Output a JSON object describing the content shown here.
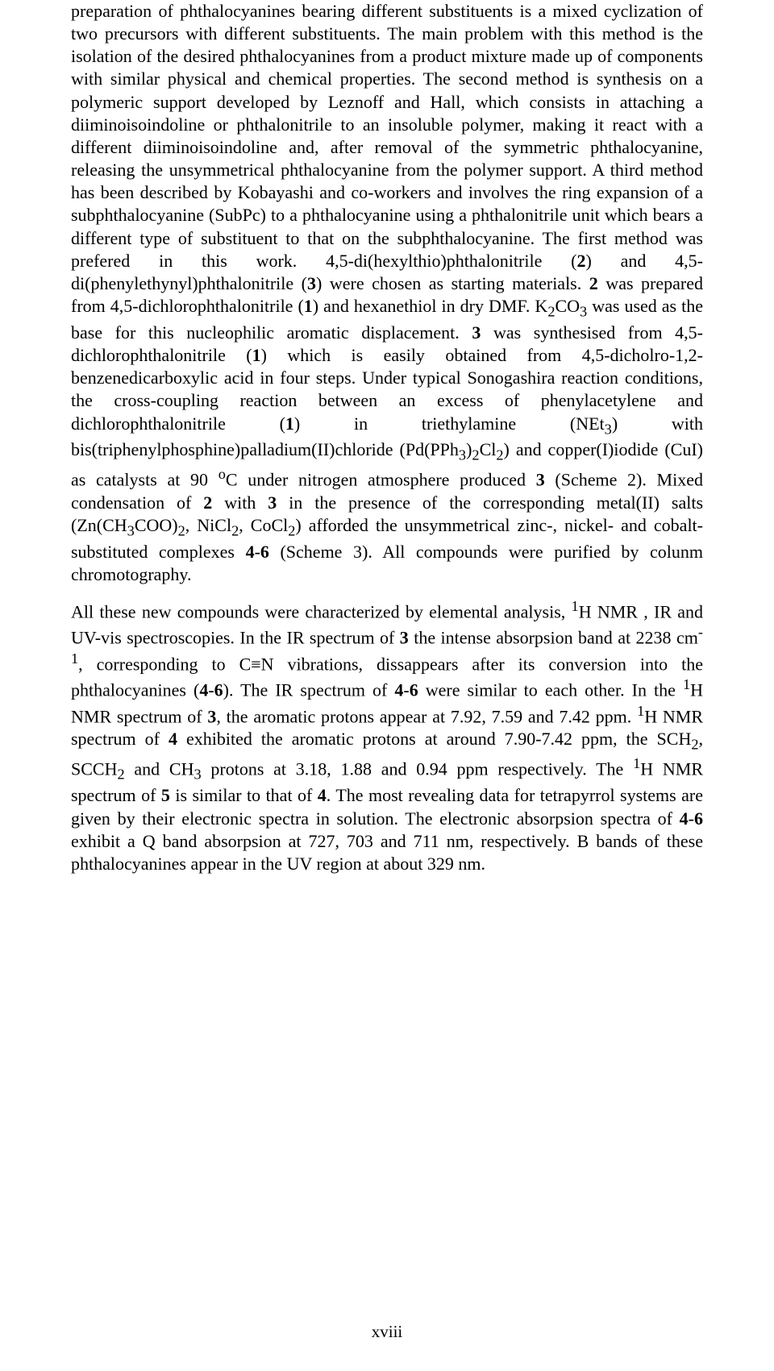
{
  "page": {
    "paragraph1_html": "preparation of phthalocyanines bearing different substituents is a mixed cyclization of two precursors with different substituents. The main problem with this method is the isolation of the desired phthalocyanines from a product mixture made up of components with similar physical and chemical properties. The second method is synthesis on a polymeric support developed by Leznoff and Hall, which consists in attaching a diiminoisoindoline or phthalonitrile to an insoluble polymer, making it react with a different diiminoisoindoline and, after removal of the symmetric phthalocyanine, releasing the unsymmetrical phthalocyanine from the polymer support. A third method has been described by Kobayashi and co-workers and involves the ring expansion of a subphthalocyanine (SubPc) to a phthalocyanine using a phthalonitrile unit which bears a different type of substituent to that on the subphthalocyanine. The first method was prefered in this work. 4,5-di(hexylthio)phthalonitrile (<b>2</b>) and 4,5-di(phenylethynyl)phthalonitrile (<b>3</b>) were chosen as starting materials. <b>2</b> was prepared from 4,5-dichlorophthalonitrile (<b>1</b>) and hexanethiol in dry DMF. K<sub>2</sub>CO<sub>3</sub> was used as the base for this nucleophilic aromatic displacement. <b>3</b> was synthesised from 4,5-dichlorophthalonitrile (<b>1</b>) which is easily obtained from 4,5-dicholro-1,2-benzenedicarboxylic acid in four steps. Under typical Sonogashira reaction conditions, the cross-coupling reaction between an excess of phenylacetylene and dichlorophthalonitrile (<b>1</b>) in triethylamine (NEt<sub>3</sub>) with bis(triphenylphosphine)palladium(II)chloride (Pd(PPh<sub>3</sub>)<sub>2</sub>Cl<sub>2</sub>) and copper(I)iodide (CuI) as catalysts at 90 <sup>o</sup>C under nitrogen atmosphere produced <b>3</b> (Scheme 2). Mixed condensation of <b>2</b> with <b>3</b> in the presence of the corresponding metal(II) salts (Zn(CH<sub>3</sub>COO)<sub>2</sub>, NiCl<sub>2</sub>, CoCl<sub>2</sub>) afforded the unsymmetrical zinc-, nickel- and cobalt-substituted complexes <b>4</b>-<b>6</b> (Scheme 3). All compounds were purified by colunm chromotography.",
    "paragraph2_html": "All these new compounds were characterized by elemental analysis, <sup>1</sup>H NMR , IR and UV-vis spectroscopies. In the IR spectrum of <b>3</b> the intense absorpsion band at 2238 cm<sup>-1</sup>, corresponding to C≡N vibrations, dissappears after its conversion into the phthalocyanines (<b>4</b>-<b>6</b>). The IR spectrum of <b>4</b>-<b>6</b> were similar to each other. In the <sup>1</sup>H NMR spectrum of <b>3</b>, the aromatic protons appear at 7.92, 7.59 and 7.42 ppm. <sup>1</sup>H NMR spectrum of <b>4</b> exhibited the aromatic protons at around 7.90-7.42 ppm, the SCH<sub>2</sub>, SCCH<sub>2</sub> and CH<sub>3</sub> protons at 3.18, 1.88 and 0.94 ppm respectively. The <sup>1</sup>H NMR spectrum of <b>5</b> is similar to that of <b>4</b>. The most revealing data for tetrapyrrol systems are given by their electronic spectra in solution. The electronic absorpsion spectra of <b>4</b>-<b>6</b> exhibit a Q band absorpsion at 727, 703 and 711 nm, respectively. B bands of these phthalocyanines appear in the UV region at about 329 nm.",
    "page_number": "xviii"
  }
}
